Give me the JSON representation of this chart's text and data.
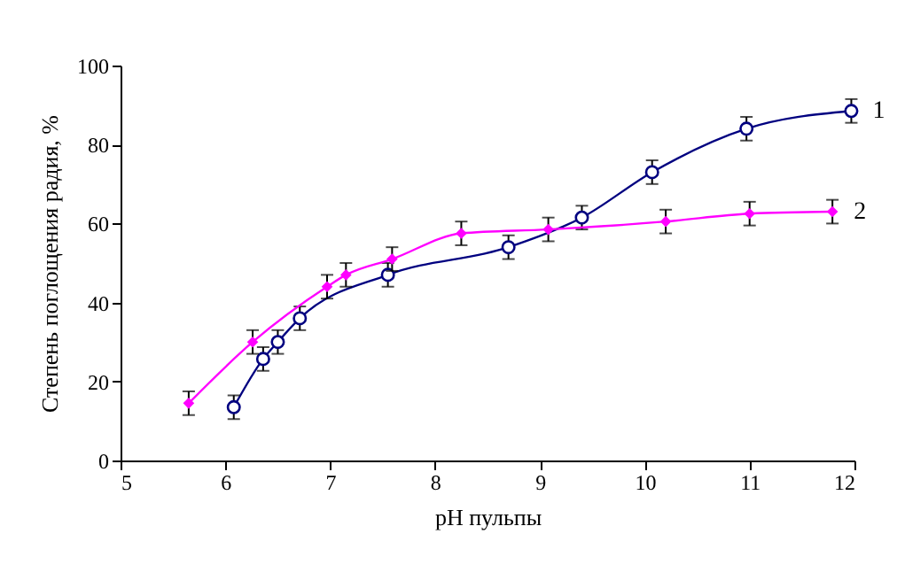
{
  "chart_data": {
    "type": "line",
    "xlabel": "pH пульпы",
    "ylabel": "Степень поглощения радия, %",
    "xlim": [
      5,
      12
    ],
    "xticks": [
      5,
      6,
      7,
      8,
      9,
      10,
      11,
      12
    ],
    "ylim": [
      0,
      100
    ],
    "yticks": [
      0,
      20,
      40,
      60,
      80,
      100
    ],
    "grid": false,
    "legend": false,
    "line_style": "solid",
    "series": [
      {
        "name": "1",
        "color": "#000080",
        "marker": "circle",
        "x": [
          6.08,
          6.36,
          6.5,
          6.71,
          7.55,
          8.7,
          9.4,
          10.07,
          10.97,
          11.97
        ],
        "values": [
          13.5,
          25.7,
          30,
          36,
          47,
          54,
          61.5,
          73,
          84,
          88.5
        ],
        "errors": [
          3,
          3,
          3,
          3,
          3,
          3,
          3,
          3,
          3,
          3
        ]
      },
      {
        "name": "2",
        "color": "#ff00ff",
        "marker": "diamond",
        "x": [
          5.65,
          6.26,
          6.97,
          7.15,
          7.59,
          8.25,
          9.08,
          10.2,
          11.0,
          11.79
        ],
        "values": [
          14.5,
          30,
          44,
          47,
          51,
          57.5,
          58.5,
          60.5,
          62.5,
          63
        ],
        "errors": [
          3,
          3,
          3,
          3,
          3,
          3,
          3,
          3,
          3,
          3
        ]
      }
    ]
  }
}
